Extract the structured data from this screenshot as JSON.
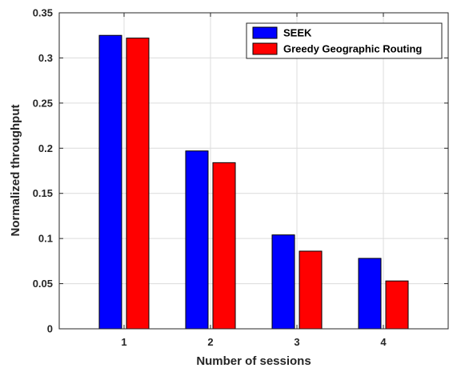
{
  "chart_data": {
    "type": "bar",
    "categories": [
      "1",
      "2",
      "3",
      "4"
    ],
    "series": [
      {
        "name": "SEEK",
        "values": [
          0.325,
          0.197,
          0.104,
          0.078
        ],
        "color": "#0000ff"
      },
      {
        "name": "Greedy Geographic Routing",
        "values": [
          0.322,
          0.184,
          0.086,
          0.053
        ],
        "color": "#ff0000"
      }
    ],
    "xlabel": "Number of sessions",
    "ylabel": "Normalized throughput",
    "ylim": [
      0,
      0.35
    ],
    "yticks": [
      0,
      0.05,
      0.1,
      0.15,
      0.2,
      0.25,
      0.3,
      0.35
    ],
    "ytick_labels": [
      "0",
      "0.05",
      "0.1",
      "0.15",
      "0.2",
      "0.25",
      "0.3",
      "0.35"
    ],
    "grid": true,
    "legend_position": "top-right"
  }
}
